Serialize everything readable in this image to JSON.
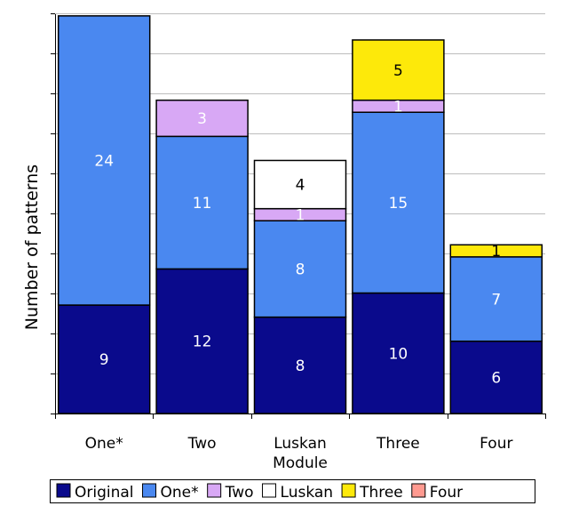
{
  "chart_data": {
    "type": "bar",
    "stacked": true,
    "categories": [
      "One*",
      "Two",
      "Luskan Module",
      "Three",
      "Four"
    ],
    "category_labels": [
      [
        "One*"
      ],
      [
        "Two"
      ],
      [
        "Luskan",
        "Module"
      ],
      [
        "Three"
      ],
      [
        "Four"
      ]
    ],
    "series": [
      {
        "name": "Original",
        "color": "#0a0a8c",
        "values": [
          9,
          12,
          8,
          10,
          6
        ]
      },
      {
        "name": "One*",
        "color": "#4a88f0",
        "values": [
          24,
          11,
          8,
          15,
          7
        ]
      },
      {
        "name": "Two",
        "color": "#d8a8f5",
        "values": [
          0,
          3,
          1,
          1,
          0
        ]
      },
      {
        "name": "Luskan",
        "color": "#ffffff",
        "values": [
          0,
          0,
          4,
          0,
          0
        ]
      },
      {
        "name": "Three",
        "color": "#fde90a",
        "values": [
          0,
          0,
          0,
          5,
          1
        ]
      },
      {
        "name": "Four",
        "color": "#ff9a90",
        "values": [
          0,
          0,
          0,
          0,
          0
        ]
      }
    ],
    "label_colors": {
      "Original": "#ffffff",
      "One*": "#ffffff",
      "Two": "#ffffff",
      "Luskan": "#000000",
      "Three": "#000000",
      "Four": "#000000"
    },
    "ylabel": "Number of patterns",
    "yticks_shown": false,
    "grid": true,
    "legend": "bottom"
  }
}
